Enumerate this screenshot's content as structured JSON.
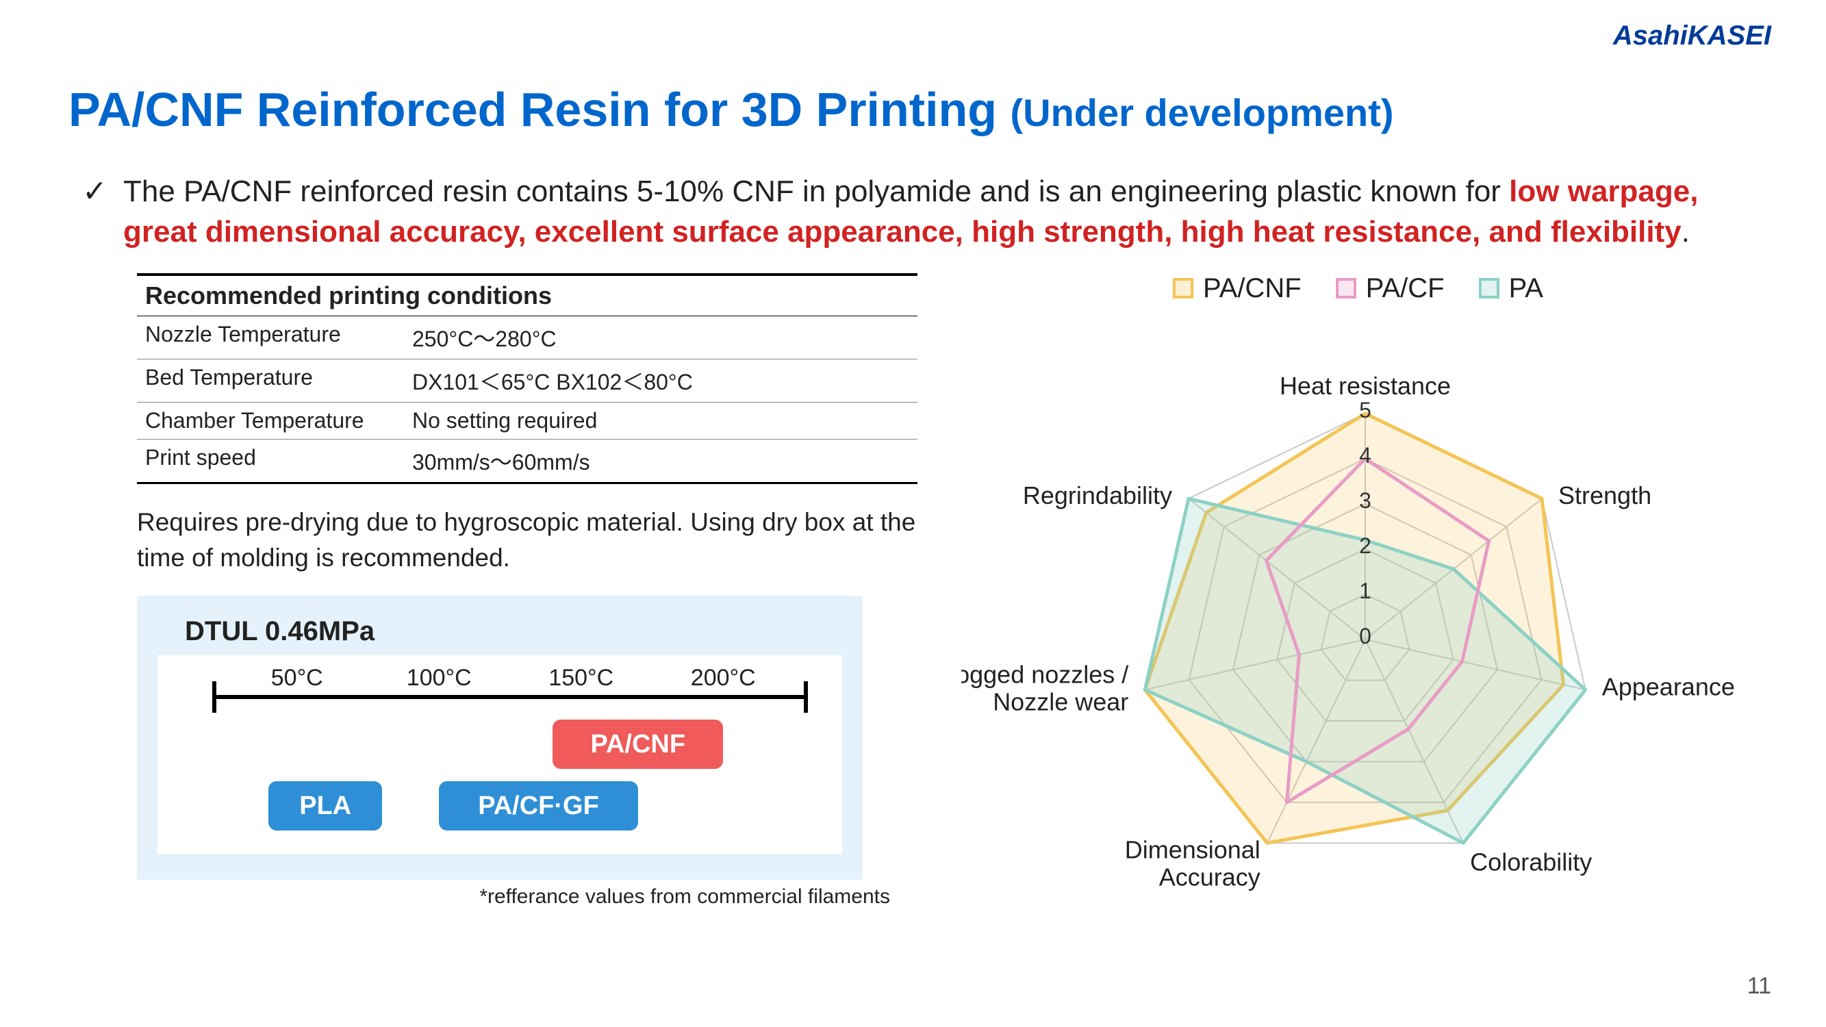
{
  "brand": {
    "part1": "Asahi",
    "part2": "KASEI",
    "color": "#003b98"
  },
  "title": {
    "main": "PA/CNF Reinforced Resin for 3D Printing ",
    "sub": "(Under development)",
    "color": "#0066cc"
  },
  "bullet": {
    "check": "✓",
    "lead": "The PA/CNF reinforced resin contains 5-10% CNF in polyamide and is an engineering plastic known for ",
    "emph": "low warpage, great dimensional accuracy, excellent surface appearance, high strength, high heat resistance, and flexibility",
    "tail": ".",
    "emph_color": "#d12222"
  },
  "conditions": {
    "header": "Recommended printing conditions",
    "rows": [
      {
        "label": "Nozzle Temperature",
        "value": "250°C～280°C"
      },
      {
        "label": "Bed Temperature",
        "value": "DX101＜65°C    BX102＜80°C"
      },
      {
        "label": "Chamber Temperature",
        "value": "No setting required"
      },
      {
        "label": "Print speed",
        "value": "30mm/s～60mm/s"
      }
    ]
  },
  "note": "Requires pre-drying due to hygroscopic material. Using dry box at the time of molding is recommended.",
  "dtul": {
    "title": "DTUL   0.46MPa",
    "axis": {
      "min": 25,
      "max": 225
    },
    "ticks": [
      {
        "value": 50,
        "label": "50°C"
      },
      {
        "value": 100,
        "label": "100°C"
      },
      {
        "value": 150,
        "label": "150°C"
      },
      {
        "value": 200,
        "label": "200°C"
      }
    ],
    "bars": [
      {
        "name": "PA/CNF",
        "label": "PA/CNF",
        "color": "#f05a5a",
        "row": 0,
        "from": 140,
        "to": 200
      },
      {
        "name": "PLA",
        "label": "PLA",
        "color": "#2e8fd6",
        "row": 1,
        "from": 40,
        "to": 80
      },
      {
        "name": "PA/CF·GF",
        "label": "PA/CF·GF",
        "color": "#2e8fd6",
        "row": 1,
        "from": 100,
        "to": 170
      }
    ],
    "footnote": "*refferance values from commercial filaments"
  },
  "radar": {
    "legend": [
      {
        "name": "PA/CNF",
        "color": "#f4c455"
      },
      {
        "name": "PA/CF",
        "color": "#e89cc5"
      },
      {
        "name": "PA",
        "color": "#8dd1c5"
      }
    ],
    "axes": [
      "Heat resistance",
      "Strength",
      "Appearance",
      "Colorability",
      "Dimensional Accuracy",
      "Clogged nozzles / Nozzle wear",
      "Regrindability"
    ],
    "levels": [
      0,
      1,
      2,
      3,
      4,
      5
    ],
    "level_labels": [
      "0",
      "1",
      "2",
      "3",
      "4",
      "5"
    ],
    "max": 5,
    "grid_color": "#c9c9c9",
    "series": [
      {
        "name": "PA/CNF",
        "color": "#f4c455",
        "fill_opacity": 0.2,
        "stroke_width": 5,
        "values": [
          5,
          5,
          4.5,
          4.2,
          5,
          5,
          4.5
        ]
      },
      {
        "name": "PA",
        "color": "#8dd1c5",
        "fill_opacity": 0.25,
        "stroke_width": 5,
        "values": [
          2.2,
          2.5,
          5,
          5,
          3,
          5,
          5
        ]
      },
      {
        "name": "PA/CF",
        "color": "#e89cc5",
        "fill_opacity": 0.0,
        "stroke_width": 5,
        "values": [
          4,
          3.5,
          2.2,
          2.2,
          4,
          1.5,
          2.8
        ]
      }
    ],
    "label_fontsize": 36,
    "level_fontsize": 32
  },
  "pagenum": "11"
}
